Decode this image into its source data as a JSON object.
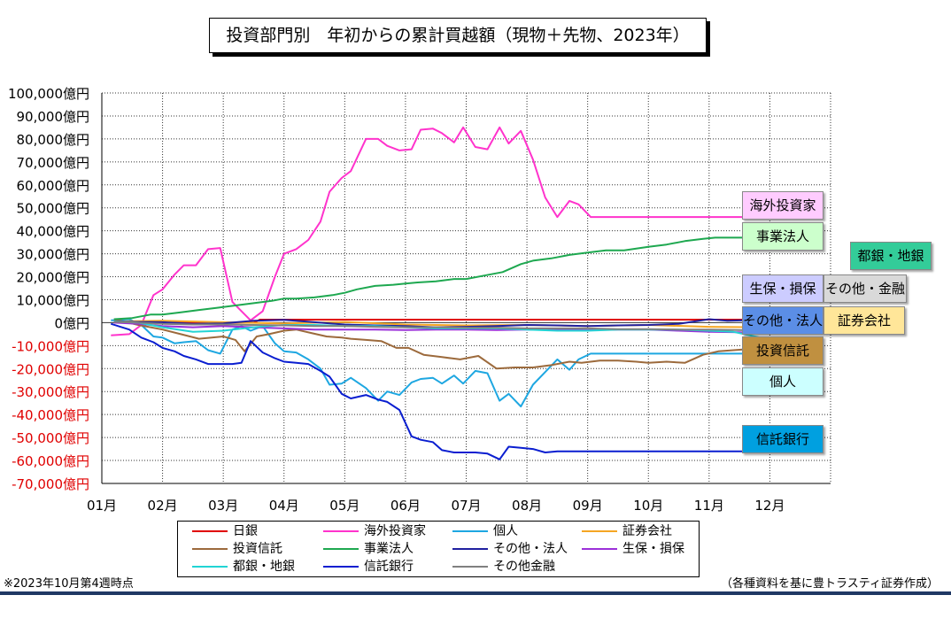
{
  "title": "投資部門別　年初からの累計買越額（現物＋先物、2023年）",
  "footnote_left": "※2023年10月第4週時点",
  "footnote_right": "（各種資料を基に豊トラスティ証券作成）",
  "chart_data": {
    "type": "line",
    "title": "投資部門別　年初からの累計買越額（現物＋先物、2023年）",
    "xlabel": "",
    "ylabel": "",
    "ylim": [
      -70000,
      100000
    ],
    "y_ticks": [
      100000,
      90000,
      80000,
      70000,
      60000,
      50000,
      40000,
      30000,
      20000,
      10000,
      0,
      -10000,
      -20000,
      -30000,
      -40000,
      -50000,
      -60000,
      -70000
    ],
    "y_tick_labels": [
      "100,000億円",
      "90,000億円",
      "80,000億円",
      "70,000億円",
      "60,000億円",
      "50,000億円",
      "40,000億円",
      "30,000億円",
      "20,000億円",
      "10,000億円",
      "0億円",
      "-10,000億円",
      "-20,000億円",
      "-30,000億円",
      "-40,000億円",
      "-50,000億円",
      "-60,000億円",
      "-70,000億円"
    ],
    "x_tick_labels": [
      "01月",
      "02月",
      "03月",
      "04月",
      "05月",
      "06月",
      "07月",
      "08月",
      "09月",
      "10月",
      "11月",
      "12月"
    ],
    "xlim": [
      0,
      12
    ],
    "grid": true,
    "legend_position": "bottom",
    "series": [
      {
        "name": "日銀",
        "color": "#e00000",
        "x": [
          0.2,
          2.5,
          2.6,
          3.0,
          10.85
        ],
        "y": [
          0,
          0,
          1300,
          1300,
          1300
        ]
      },
      {
        "name": "海外投資家",
        "color": "#ff33cc",
        "x": [
          0.15,
          0.45,
          0.65,
          0.85,
          1.0,
          1.2,
          1.35,
          1.55,
          1.75,
          1.95,
          2.15,
          2.3,
          2.45,
          2.65,
          2.85,
          3.0,
          3.2,
          3.4,
          3.6,
          3.75,
          3.95,
          4.1,
          4.35,
          4.55,
          4.7,
          4.9,
          5.1,
          5.25,
          5.45,
          5.6,
          5.8,
          5.95,
          6.15,
          6.35,
          6.55,
          6.7,
          6.9,
          7.1,
          7.3,
          7.5,
          7.7,
          7.85,
          8.05,
          8.25,
          8.45,
          8.65,
          8.8,
          9.0,
          9.2,
          9.35,
          9.55,
          9.75,
          9.9,
          10.1,
          10.25,
          10.45,
          10.65,
          10.85
        ],
        "y": [
          -5500,
          -5000,
          -1000,
          12000,
          14500,
          21000,
          25000,
          25000,
          32000,
          32500,
          9000,
          5000,
          1000,
          5000,
          20000,
          30000,
          32000,
          36000,
          44000,
          57000,
          63000,
          66000,
          80000,
          80000,
          77000,
          75000,
          75500,
          84000,
          84500,
          82500,
          78500,
          85000,
          76500,
          75500,
          85000,
          78000,
          83500,
          71000,
          54500,
          46000,
          53000,
          51500,
          46000,
          46000,
          46000,
          46000,
          46000,
          46000,
          46000,
          46000,
          46000,
          46000,
          46000,
          46000,
          46000,
          46000,
          46000,
          46000
        ]
      },
      {
        "name": "個人",
        "color": "#1ea7e1",
        "x": [
          0.15,
          0.45,
          0.65,
          0.85,
          1.0,
          1.2,
          1.35,
          1.55,
          1.75,
          1.95,
          2.15,
          2.3,
          2.45,
          2.65,
          2.85,
          3.0,
          3.2,
          3.4,
          3.6,
          3.75,
          3.95,
          4.1,
          4.35,
          4.55,
          4.7,
          4.9,
          5.1,
          5.25,
          5.45,
          5.6,
          5.8,
          5.95,
          6.15,
          6.35,
          6.55,
          6.7,
          6.9,
          7.1,
          7.3,
          7.5,
          7.7,
          7.85,
          8.05,
          8.25,
          8.45,
          8.65,
          8.8,
          9.0,
          9.2,
          9.35,
          9.55,
          9.75,
          9.9,
          10.1,
          10.25,
          10.45,
          10.65,
          10.85
        ],
        "y": [
          1000,
          1500,
          -1000,
          -6000,
          -6500,
          -9000,
          -8500,
          -8000,
          -12000,
          -13500,
          -3000,
          -1500,
          -3500,
          -1500,
          -9000,
          -12500,
          -13000,
          -16000,
          -20000,
          -27000,
          -26500,
          -24000,
          -28500,
          -34000,
          -30000,
          -31500,
          -26000,
          -24500,
          -24000,
          -26500,
          -23000,
          -26500,
          -21000,
          -22000,
          -34000,
          -31000,
          -36500,
          -27000,
          -21500,
          -16000,
          -20500,
          -16000,
          -13500,
          -13500,
          -13500,
          -13500,
          -13500,
          -13500,
          -13500,
          -13500,
          -13500,
          -13500,
          -13500,
          -13500,
          -13500,
          -13500,
          -13500,
          -13500
        ]
      },
      {
        "name": "証券会社",
        "color": "#f5a623",
        "x": [
          0.2,
          1.0,
          2.0,
          3.0,
          4.0,
          5.0,
          6.0,
          7.0,
          8.0,
          9.0,
          10.0,
          10.85
        ],
        "y": [
          500,
          800,
          200,
          -400,
          300,
          -800,
          -1200,
          -1000,
          -1500,
          -1000,
          -1800,
          -2000
        ]
      },
      {
        "name": "投資信託",
        "color": "#9c6a3c",
        "x": [
          0.2,
          0.6,
          1.0,
          1.3,
          1.6,
          2.0,
          2.2,
          2.35,
          2.55,
          2.75,
          3.0,
          3.2,
          3.45,
          3.7,
          3.95,
          4.1,
          4.35,
          4.6,
          4.85,
          5.05,
          5.3,
          5.6,
          5.9,
          6.2,
          6.5,
          6.8,
          7.1,
          7.4,
          7.7,
          7.9,
          8.2,
          8.5,
          8.8,
          9.0,
          9.3,
          9.6,
          9.9,
          10.15,
          10.4,
          10.65,
          10.85
        ],
        "y": [
          1500,
          -1000,
          -3000,
          -5000,
          -7000,
          -6000,
          -7500,
          -12500,
          -6000,
          -5000,
          -3500,
          -3000,
          -4500,
          -6000,
          -6500,
          -7000,
          -7500,
          -8000,
          -11000,
          -11000,
          -14000,
          -15000,
          -16000,
          -14500,
          -20000,
          -19500,
          -19500,
          -18500,
          -17000,
          -17500,
          -16500,
          -16500,
          -17000,
          -17500,
          -17000,
          -17500,
          -14000,
          -12500,
          -12000,
          -11500,
          -11500
        ]
      },
      {
        "name": "事業法人",
        "color": "#1ea850",
        "x": [
          0.2,
          0.5,
          0.8,
          1.0,
          1.3,
          1.6,
          1.9,
          2.2,
          2.5,
          2.8,
          3.0,
          3.2,
          3.5,
          3.8,
          4.0,
          4.2,
          4.5,
          4.8,
          5.0,
          5.2,
          5.5,
          5.8,
          6.0,
          6.3,
          6.6,
          6.9,
          7.1,
          7.4,
          7.7,
          8.0,
          8.3,
          8.6,
          9.0,
          9.3,
          9.6,
          9.9,
          10.1,
          10.3,
          10.5,
          10.7,
          10.85
        ],
        "y": [
          1500,
          2000,
          3500,
          3500,
          4500,
          5500,
          6500,
          7500,
          8500,
          9500,
          10500,
          10500,
          11000,
          12000,
          13000,
          14500,
          16000,
          16500,
          17000,
          17500,
          18000,
          19000,
          19000,
          20500,
          22000,
          25500,
          27000,
          28000,
          29500,
          30500,
          31500,
          31500,
          33000,
          34000,
          35500,
          36500,
          37000,
          37000,
          37000,
          37000,
          37000
        ]
      },
      {
        "name": "その他・法人",
        "color": "#2020a0",
        "x": [
          0.2,
          0.6,
          1.0,
          1.5,
          2.0,
          2.5,
          3.0,
          3.5,
          4.0,
          4.5,
          5.0,
          5.5,
          6.0,
          6.5,
          7.0,
          7.5,
          8.0,
          8.5,
          9.0,
          9.5,
          10.0,
          10.3,
          10.6,
          10.85
        ],
        "y": [
          500,
          300,
          200,
          -500,
          -300,
          800,
          1200,
          200,
          -800,
          -1200,
          -1500,
          -2000,
          -1800,
          -1500,
          -1000,
          -1200,
          -1500,
          -1200,
          -1000,
          -500,
          1500,
          800,
          1000,
          3000
        ]
      },
      {
        "name": "生保・損保",
        "color": "#9b30d9",
        "x": [
          0.2,
          0.6,
          1.0,
          1.5,
          2.0,
          2.5,
          3.0,
          3.5,
          4.0,
          4.5,
          5.0,
          5.5,
          6.0,
          6.5,
          7.0,
          7.5,
          8.0,
          8.5,
          9.0,
          9.5,
          10.0,
          10.5,
          10.85
        ],
        "y": [
          0,
          -500,
          -1500,
          -2000,
          -1500,
          -2000,
          -2500,
          -3000,
          -3000,
          -3000,
          -3200,
          -3000,
          -3000,
          -3200,
          -3000,
          -3000,
          -3200,
          -3000,
          -3000,
          -3500,
          -4000,
          -4200,
          -4500
        ]
      },
      {
        "name": "都銀・地銀",
        "color": "#22d4d4",
        "x": [
          0.2,
          0.6,
          1.0,
          1.5,
          2.0,
          2.5,
          3.0,
          3.5,
          4.0,
          4.5,
          5.0,
          5.5,
          6.0,
          6.5,
          7.0,
          7.5,
          8.0,
          8.5,
          9.0,
          9.5,
          10.0,
          10.4,
          10.85
        ],
        "y": [
          500,
          0,
          -2000,
          -4000,
          -3500,
          -2000,
          -1000,
          -1000,
          -1500,
          -1500,
          -2000,
          -2500,
          -2500,
          -2500,
          -3000,
          -3500,
          -3500,
          -3000,
          -3000,
          -3000,
          -3500,
          -4000,
          -6500
        ]
      },
      {
        "name": "信託銀行",
        "color": "#0a1ed0",
        "x": [
          0.15,
          0.45,
          0.65,
          0.85,
          1.0,
          1.2,
          1.35,
          1.55,
          1.75,
          1.95,
          2.15,
          2.3,
          2.45,
          2.65,
          2.85,
          3.0,
          3.2,
          3.4,
          3.6,
          3.75,
          3.95,
          4.1,
          4.35,
          4.55,
          4.7,
          4.9,
          5.1,
          5.25,
          5.45,
          5.6,
          5.8,
          5.95,
          6.15,
          6.35,
          6.55,
          6.7,
          6.9,
          7.1,
          7.3,
          7.5,
          7.7,
          7.85,
          8.05,
          8.25,
          8.45,
          8.65,
          8.8,
          9.0,
          9.2,
          9.35,
          9.55,
          9.75,
          9.9,
          10.1,
          10.25,
          10.45,
          10.65,
          10.85
        ],
        "y": [
          -500,
          -3000,
          -6500,
          -8500,
          -11000,
          -12500,
          -14500,
          -16000,
          -18000,
          -18000,
          -18000,
          -17500,
          -8000,
          -13000,
          -15500,
          -17000,
          -17500,
          -18000,
          -21000,
          -23500,
          -31000,
          -33000,
          -31500,
          -33500,
          -34500,
          -38000,
          -49500,
          -51000,
          -52000,
          -55500,
          -56500,
          -56500,
          -56500,
          -57000,
          -59500,
          -54000,
          -54500,
          -55000,
          -56500,
          -56000,
          -56000,
          -56000,
          -56000,
          -56000,
          -56000,
          -56000,
          -56000,
          -56000,
          -56000,
          -56000,
          -56000,
          -56000,
          -56000,
          -56000,
          -56000,
          -56000,
          -56000,
          -56000
        ]
      },
      {
        "name": "その他金融",
        "color": "#808080",
        "x": [
          0.2,
          0.6,
          1.0,
          1.5,
          2.0,
          2.5,
          3.0,
          3.5,
          4.0,
          4.5,
          5.0,
          5.5,
          6.0,
          6.5,
          7.0,
          7.5,
          8.0,
          8.5,
          9.0,
          9.5,
          10.0,
          10.5,
          10.85
        ],
        "y": [
          300,
          0,
          -500,
          -800,
          -800,
          -1000,
          -1200,
          -1500,
          -1500,
          -1800,
          -2000,
          -2000,
          -2200,
          -2200,
          -2500,
          -2500,
          -2500,
          -2800,
          -2800,
          -3000,
          -3000,
          -3200,
          -3500
        ]
      }
    ]
  },
  "series_labels": [
    {
      "key": "海外投資家",
      "text": "海外投資家",
      "bg": "#ffccff"
    },
    {
      "key": "事業法人",
      "text": "事業法人",
      "bg": "#ccffcc"
    },
    {
      "key": "都銀・地銀",
      "text": "都銀・地銀",
      "bg": "#33cc99"
    },
    {
      "key": "生保・損保",
      "text": "生保・損保",
      "bg": "#ccccff"
    },
    {
      "key": "その他金融",
      "text": "その他・金融",
      "bg": "#d9d9d9"
    },
    {
      "key": "その他・法人",
      "text": "その他・法人",
      "bg": "#5b8ee6"
    },
    {
      "key": "証券会社",
      "text": "証券会社",
      "bg": "#ffe699"
    },
    {
      "key": "投資信託",
      "text": "投資信託",
      "bg": "#c09040"
    },
    {
      "key": "個人",
      "text": "個人",
      "bg": "#ccffff"
    },
    {
      "key": "信託銀行",
      "text": "信託銀行",
      "bg": "#00a0e0"
    }
  ]
}
